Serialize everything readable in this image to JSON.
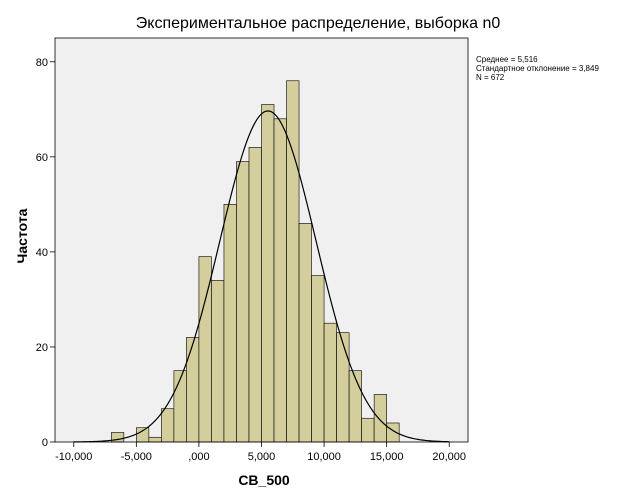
{
  "chart_data": {
    "type": "bar",
    "title": "Экспериментальное  распределение, выборка n0",
    "xlabel": "CB_500",
    "ylabel": "Частота",
    "xlim": [
      -11500,
      21500
    ],
    "ylim": [
      0,
      85
    ],
    "x_ticks": [
      {
        "value": -10000,
        "label": "-10,000"
      },
      {
        "value": -5000,
        "label": "-5,000"
      },
      {
        "value": 0,
        "label": ",000"
      },
      {
        "value": 5000,
        "label": "5,000"
      },
      {
        "value": 10000,
        "label": "10,000"
      },
      {
        "value": 15000,
        "label": "15,000"
      },
      {
        "value": 20000,
        "label": "20,000"
      }
    ],
    "y_ticks": [
      {
        "value": 0,
        "label": "0"
      },
      {
        "value": 20,
        "label": "20"
      },
      {
        "value": 40,
        "label": "40"
      },
      {
        "value": 60,
        "label": "60"
      },
      {
        "value": 80,
        "label": "80"
      }
    ],
    "bin_width": 1000,
    "bins": [
      {
        "start": -7000,
        "end": -6000,
        "count": 2
      },
      {
        "start": -6000,
        "end": -5000,
        "count": 0
      },
      {
        "start": -5000,
        "end": -4000,
        "count": 3
      },
      {
        "start": -4000,
        "end": -3000,
        "count": 1
      },
      {
        "start": -3000,
        "end": -2000,
        "count": 7
      },
      {
        "start": -2000,
        "end": -1000,
        "count": 15
      },
      {
        "start": -1000,
        "end": 0,
        "count": 22
      },
      {
        "start": 0,
        "end": 1000,
        "count": 39
      },
      {
        "start": 1000,
        "end": 2000,
        "count": 34
      },
      {
        "start": 2000,
        "end": 3000,
        "count": 50
      },
      {
        "start": 3000,
        "end": 4000,
        "count": 59
      },
      {
        "start": 4000,
        "end": 5000,
        "count": 62
      },
      {
        "start": 5000,
        "end": 6000,
        "count": 71
      },
      {
        "start": 6000,
        "end": 7000,
        "count": 68
      },
      {
        "start": 7000,
        "end": 8000,
        "count": 76
      },
      {
        "start": 8000,
        "end": 9000,
        "count": 46
      },
      {
        "start": 9000,
        "end": 10000,
        "count": 35
      },
      {
        "start": 10000,
        "end": 11000,
        "count": 25
      },
      {
        "start": 11000,
        "end": 12000,
        "count": 23
      },
      {
        "start": 12000,
        "end": 13000,
        "count": 15
      },
      {
        "start": 13000,
        "end": 14000,
        "count": 5
      },
      {
        "start": 14000,
        "end": 15000,
        "count": 10
      },
      {
        "start": 15000,
        "end": 16000,
        "count": 4
      }
    ],
    "normal_curve": {
      "mean": 5516,
      "std": 3849,
      "n": 672,
      "x_range": [
        -10000,
        20000
      ]
    },
    "stats": [
      "Среднее = 5,516",
      "Стандартное отклонение = 3,849",
      "N = 672"
    ],
    "grid": false,
    "legend": "none"
  },
  "colors": {
    "bar_fill": "#d3ce9c",
    "bar_stroke": "#000000",
    "plot_background": "#f0f0f0",
    "curve": "#000000",
    "frame": "#000000"
  }
}
